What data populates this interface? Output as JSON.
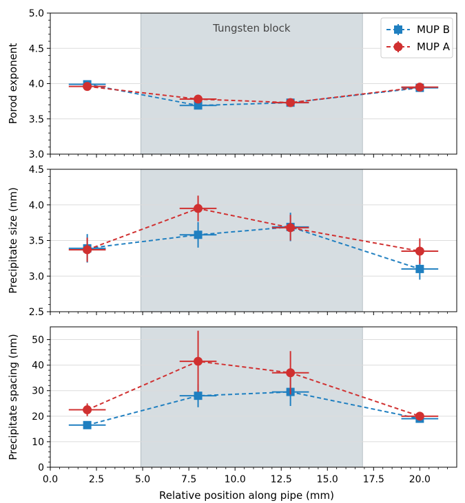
{
  "chart_data": {
    "type": "line",
    "xlabel": "Relative position along pipe (mm)",
    "xlim": [
      0,
      22
    ],
    "xticks": [
      "0.0",
      "2.5",
      "5.0",
      "7.5",
      "10.0",
      "12.5",
      "15.0",
      "17.5",
      "20.0"
    ],
    "shaded_region": {
      "x": [
        4.9,
        16.9
      ],
      "label": "Tungsten block"
    },
    "legend": {
      "position": "top-right",
      "entries": [
        "MUP B",
        "MUP A"
      ]
    },
    "colors": {
      "MUP B": "#1f7fc0",
      "MUP A": "#d03030",
      "shade": "#d6dde1"
    },
    "grid": "horizontal",
    "panels": [
      {
        "ylabel": "Porod exponent",
        "ylim": [
          3.0,
          5.0
        ],
        "yticks": [
          "3.0",
          "3.5",
          "4.0",
          "4.5",
          "5.0"
        ],
        "series": [
          {
            "name": "MUP B",
            "marker": "square",
            "x": [
              2,
              8,
              13,
              20
            ],
            "y": [
              3.99,
              3.69,
              3.73,
              3.94
            ],
            "xerr": [
              1,
              1,
              1,
              1
            ],
            "yerr": [
              0.02,
              0.02,
              0.02,
              0.02
            ]
          },
          {
            "name": "MUP A",
            "marker": "circle",
            "x": [
              2,
              8,
              13,
              20
            ],
            "y": [
              3.96,
              3.78,
              3.73,
              3.95
            ],
            "xerr": [
              1,
              1,
              1,
              1
            ],
            "yerr": [
              0.02,
              0.02,
              0.02,
              0.02
            ]
          }
        ]
      },
      {
        "ylabel": "Precipitate size (nm)",
        "ylim": [
          2.5,
          4.5
        ],
        "yticks": [
          "2.5",
          "3.0",
          "3.5",
          "4.0",
          "4.5"
        ],
        "series": [
          {
            "name": "MUP B",
            "marker": "square",
            "x": [
              2,
              8,
              13,
              20
            ],
            "y": [
              3.39,
              3.58,
              3.69,
              3.1
            ],
            "xerr": [
              1,
              1,
              1,
              1
            ],
            "yerr": [
              0.2,
              0.18,
              0.2,
              0.15
            ]
          },
          {
            "name": "MUP A",
            "marker": "circle",
            "x": [
              2,
              8,
              13,
              20
            ],
            "y": [
              3.37,
              3.95,
              3.68,
              3.35
            ],
            "xerr": [
              1,
              1,
              1,
              1
            ],
            "yerr": [
              0.17,
              0.18,
              0.18,
              0.18
            ]
          }
        ]
      },
      {
        "ylabel": "Precipitate spacing (nm)",
        "ylim": [
          0,
          55
        ],
        "yticks": [
          "0",
          "10",
          "20",
          "30",
          "40",
          "50"
        ],
        "series": [
          {
            "name": "MUP B",
            "marker": "square",
            "x": [
              2,
              8,
              13,
              20
            ],
            "y": [
              16.5,
              28,
              29.5,
              19
            ],
            "xerr": [
              1,
              1,
              1,
              1
            ],
            "yerr": [
              1.2,
              4.5,
              5.5,
              1.3
            ]
          },
          {
            "name": "MUP A",
            "marker": "circle",
            "x": [
              2,
              8,
              13,
              20
            ],
            "y": [
              22.5,
              41.5,
              37,
              20
            ],
            "xerr": [
              1,
              1,
              1,
              1
            ],
            "yerr": [
              2.5,
              12,
              8.5,
              1.3
            ]
          }
        ]
      }
    ]
  }
}
